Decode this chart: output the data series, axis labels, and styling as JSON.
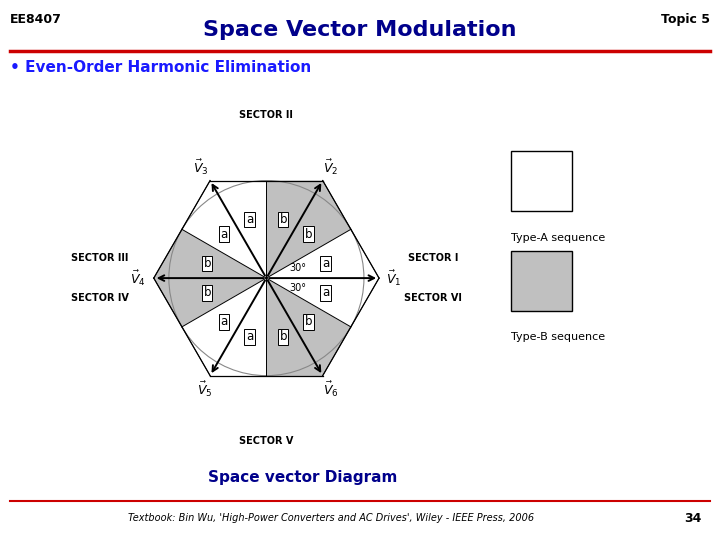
{
  "title": "Space Vector Modulation",
  "subtitle": "Even-Order Harmonic Elimination",
  "header_left": "EE8407",
  "header_right": "Topic 5",
  "footer_text": "Textbook: Bin Wu, 'High-Power Converters and AC Drives', Wiley - IEEE Press, 2006",
  "footer_page": "34",
  "diagram_caption": "Space vector Diagram",
  "title_color": "#00008B",
  "subtitle_color": "#1a1aff",
  "header_color": "#000000",
  "separator_color": "#CC0000",
  "gray_color": "#C0C0C0",
  "white_color": "#FFFFFF",
  "background_color": "#FFFFFF",
  "sector_labels": [
    "SECTOR I",
    "SECTOR II",
    "SECTOR III",
    "SECTOR IV",
    "SECTOR V",
    "SECTOR VI"
  ],
  "ab_labels": [
    "a",
    "b",
    "b",
    "a",
    "a",
    "b",
    "b",
    "a",
    "a",
    "b",
    "b",
    "a"
  ],
  "gray_triangles": [
    1,
    2,
    5,
    6,
    9,
    10
  ],
  "vec_label_names": [
    "V_1",
    "V_2",
    "V_3",
    "V_4",
    "V_5",
    "V_6"
  ]
}
